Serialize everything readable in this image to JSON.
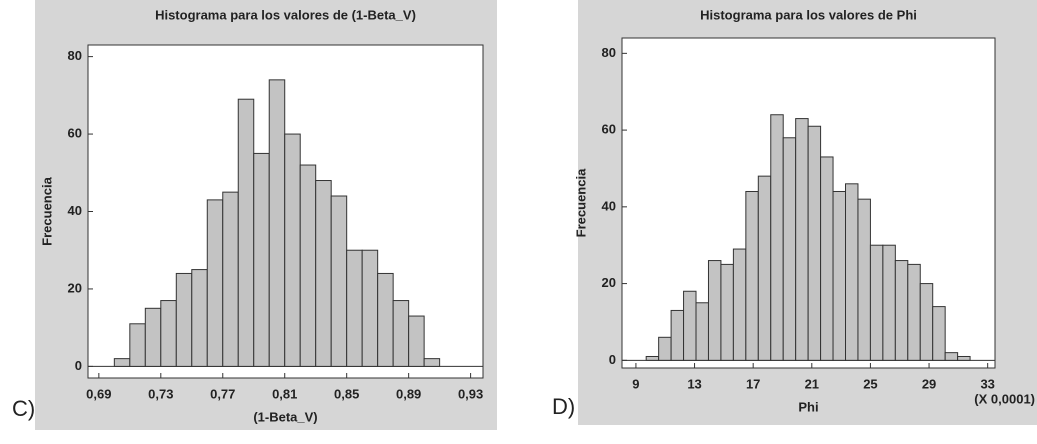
{
  "chart_data": [
    {
      "type": "histogram",
      "panel_label": "C)",
      "title": "Histograma para los valores de (1-Beta_V)",
      "x_label": "(1-Beta_V)",
      "y_label": "Frecuencia",
      "bins": [
        0.7,
        0.71,
        0.72,
        0.73,
        0.74,
        0.75,
        0.76,
        0.77,
        0.78,
        0.79,
        0.8,
        0.81,
        0.82,
        0.83,
        0.84,
        0.85,
        0.86,
        0.87,
        0.88,
        0.89,
        0.9,
        0.91
      ],
      "values": [
        2,
        11,
        15,
        17,
        24,
        25,
        43,
        45,
        69,
        55,
        74,
        60,
        52,
        48,
        44,
        30,
        30,
        24,
        17,
        13,
        2
      ],
      "color": "#c3c3c3",
      "xlim": [
        0.683,
        0.938
      ],
      "ylim": [
        -3,
        83
      ],
      "xticks": [
        {
          "value": 0.69,
          "label": "0,69"
        },
        {
          "value": 0.73,
          "label": "0,73"
        },
        {
          "value": 0.77,
          "label": "0,77"
        },
        {
          "value": 0.81,
          "label": "0,81"
        },
        {
          "value": 0.85,
          "label": "0,85"
        },
        {
          "value": 0.89,
          "label": "0,89"
        },
        {
          "value": 0.93,
          "label": "0,93"
        }
      ],
      "yticks": [
        0,
        20,
        40,
        60,
        80
      ]
    },
    {
      "type": "histogram",
      "panel_label": "D)",
      "title": "Histograma para los valores de Phi",
      "x_label": "Phi",
      "y_label": "Frecuencia",
      "x_multiplier": "(X 0,0001)",
      "bins": [
        9.7,
        10.55,
        11.4,
        12.25,
        13.1,
        13.95,
        14.8,
        15.65,
        16.5,
        17.35,
        18.2,
        19.05,
        19.9,
        20.75,
        21.6,
        22.45,
        23.3,
        24.15,
        25.0,
        25.85,
        26.7,
        27.55,
        28.4,
        29.25,
        30.1,
        30.95,
        31.8
      ],
      "values": [
        1,
        6,
        13,
        18,
        15,
        26,
        25,
        29,
        44,
        48,
        64,
        58,
        63,
        61,
        53,
        44,
        46,
        42,
        30,
        30,
        26,
        25,
        20,
        14,
        2,
        1
      ],
      "color": "#c3c3c3",
      "xlim": [
        8.05,
        33.5
      ],
      "ylim": [
        -2,
        84
      ],
      "xticks": [
        9,
        13,
        17,
        21,
        25,
        29,
        33
      ],
      "yticks": [
        0,
        20,
        40,
        60,
        80
      ]
    }
  ]
}
